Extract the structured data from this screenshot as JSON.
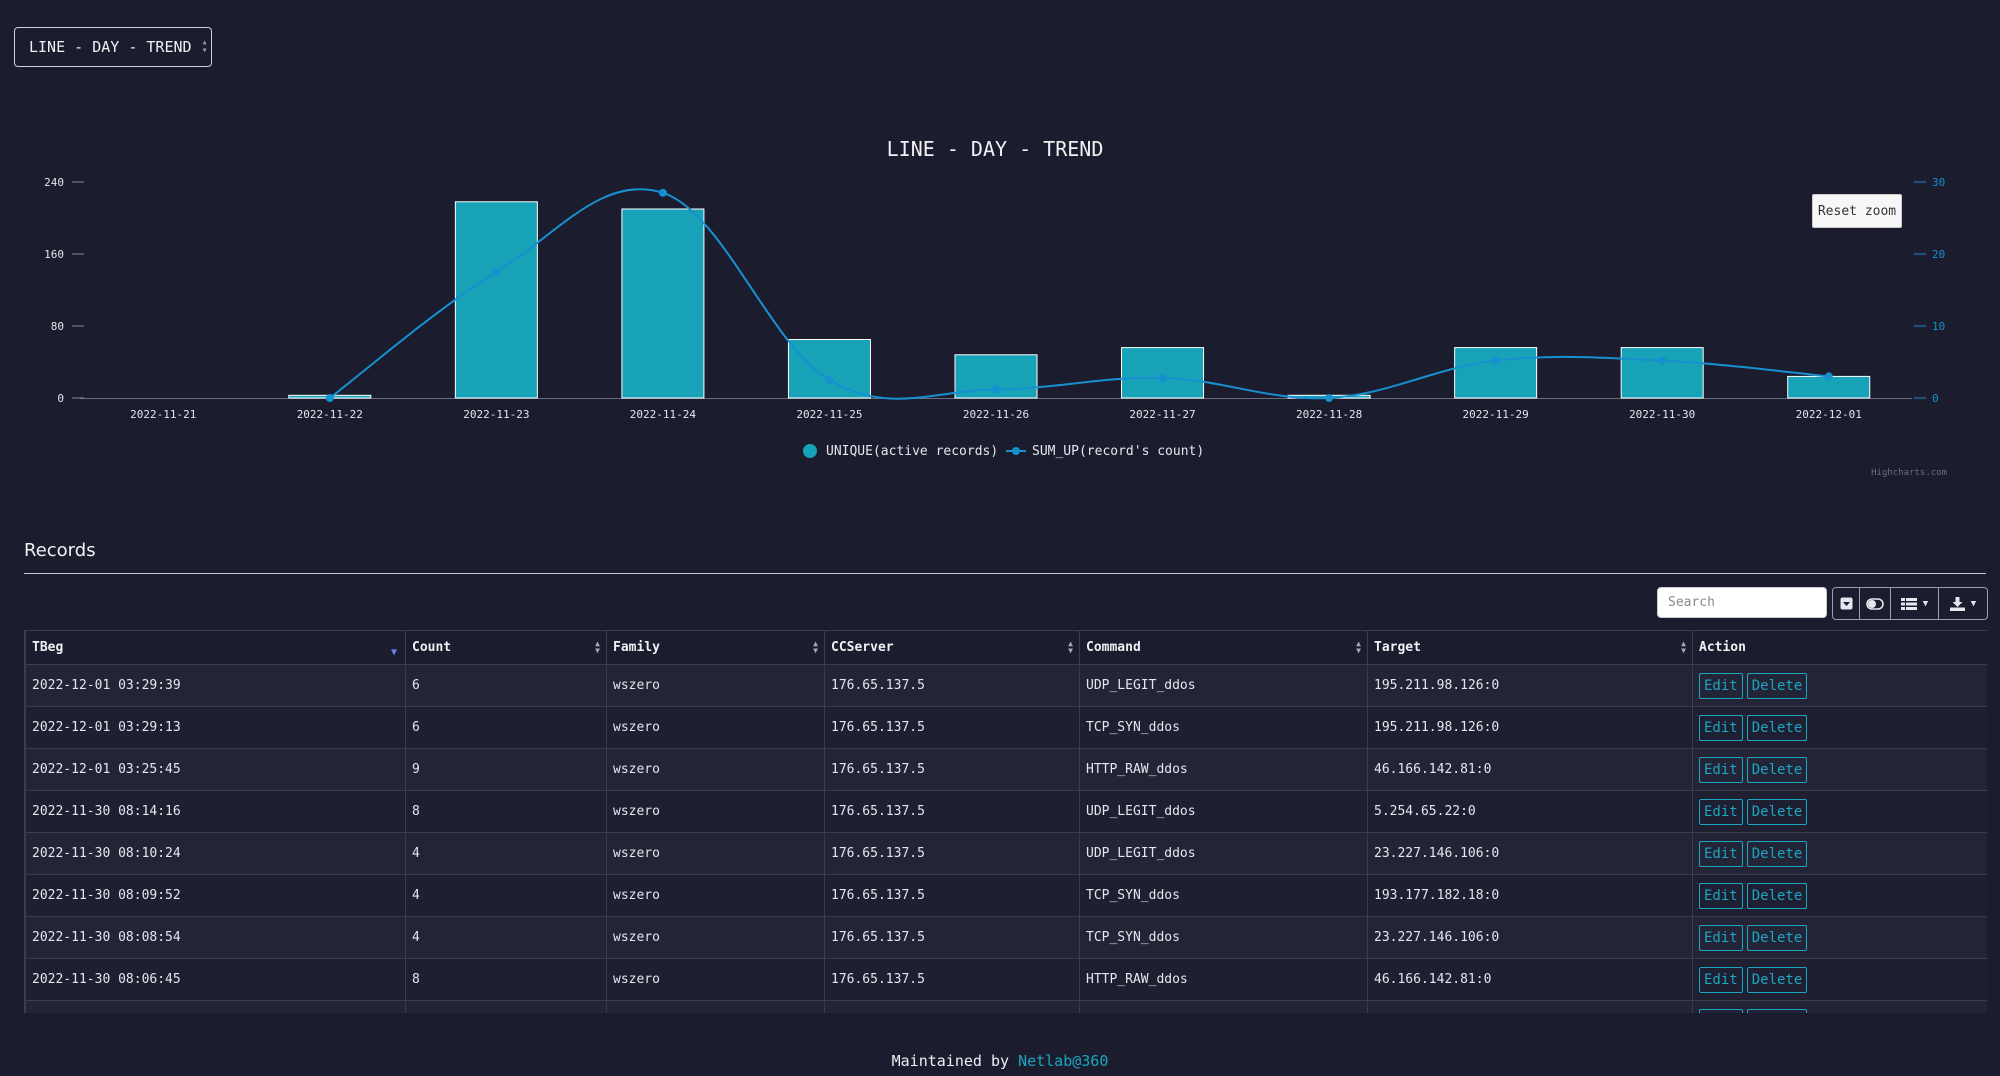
{
  "selector": {
    "value": "LINE - DAY - TREND"
  },
  "chart": {
    "reset_zoom_label": "Reset zoom",
    "credits": "Highcharts.com"
  },
  "chart_data": {
    "type": "bar",
    "title": "LINE - DAY - TREND",
    "categories": [
      "2022-11-21",
      "2022-11-22",
      "2022-11-23",
      "2022-11-24",
      "2022-11-25",
      "2022-11-26",
      "2022-11-27",
      "2022-11-28",
      "2022-11-29",
      "2022-11-30",
      "2022-12-01"
    ],
    "left_axis": {
      "ticks": [
        "0",
        "80",
        "160",
        "240"
      ],
      "range": [
        0,
        240
      ]
    },
    "right_axis": {
      "ticks": [
        "0",
        "10",
        "20",
        "30"
      ],
      "range": [
        0,
        30
      ]
    },
    "series": [
      {
        "name": "UNIQUE(active records)",
        "type": "column",
        "axis": "left",
        "color": "#17a2b8",
        "values": [
          0,
          3,
          218,
          210,
          65,
          48,
          56,
          3,
          56,
          56,
          24
        ]
      },
      {
        "name": "SUM_UP(record's count)",
        "type": "spline",
        "axis": "right",
        "color": "#1790d0",
        "values": [
          null,
          0,
          17.5,
          28.5,
          2.5,
          1.2,
          2.8,
          0,
          5.2,
          5.2,
          3
        ]
      }
    ],
    "legend_position": "bottom-center"
  },
  "records": {
    "title": "Records",
    "search_placeholder": "Search",
    "columns": [
      "TBeg",
      "Count",
      "Family",
      "CCServer",
      "Command",
      "Target",
      "Action"
    ],
    "rows": [
      [
        "2022-12-01 03:29:39",
        "6",
        "wszero",
        "176.65.137.5",
        "UDP_LEGIT_ddos",
        "195.211.98.126:0"
      ],
      [
        "2022-12-01 03:29:13",
        "6",
        "wszero",
        "176.65.137.5",
        "TCP_SYN_ddos",
        "195.211.98.126:0"
      ],
      [
        "2022-12-01 03:25:45",
        "9",
        "wszero",
        "176.65.137.5",
        "HTTP_RAW_ddos",
        "46.166.142.81:0"
      ],
      [
        "2022-11-30 08:14:16",
        "8",
        "wszero",
        "176.65.137.5",
        "UDP_LEGIT_ddos",
        "5.254.65.22:0"
      ],
      [
        "2022-11-30 08:10:24",
        "4",
        "wszero",
        "176.65.137.5",
        "UDP_LEGIT_ddos",
        "23.227.146.106:0"
      ],
      [
        "2022-11-30 08:09:52",
        "4",
        "wszero",
        "176.65.137.5",
        "TCP_SYN_ddos",
        "193.177.182.18:0"
      ],
      [
        "2022-11-30 08:08:54",
        "4",
        "wszero",
        "176.65.137.5",
        "TCP_SYN_ddos",
        "23.227.146.106:0"
      ],
      [
        "2022-11-30 08:06:45",
        "8",
        "wszero",
        "176.65.137.5",
        "HTTP_RAW_ddos",
        "46.166.142.81:0"
      ],
      [
        "",
        "",
        "",
        "",
        "",
        "",
        ""
      ]
    ],
    "edit_label": "Edit",
    "delete_label": "Delete"
  },
  "footer": {
    "text": "Maintained by",
    "link": "Netlab@360"
  }
}
